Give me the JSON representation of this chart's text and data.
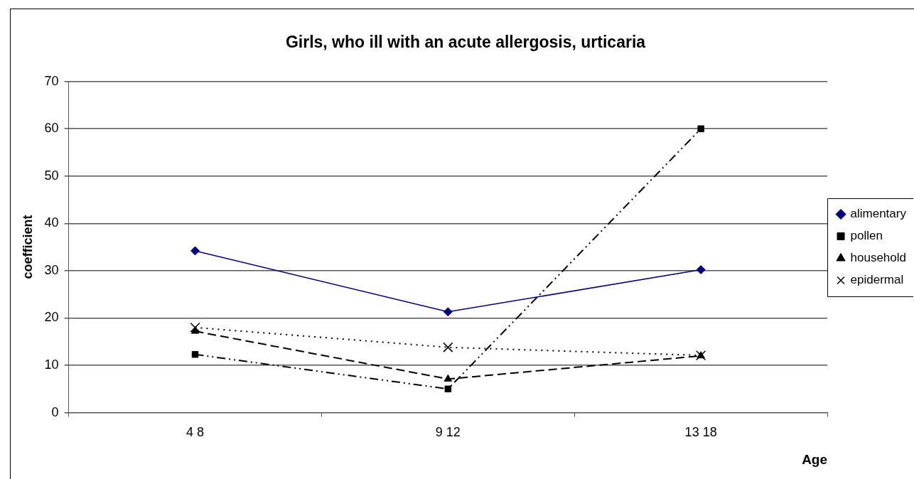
{
  "chart_data": {
    "type": "line",
    "title": "Girls, who ill with an acute allergosis, urticaria",
    "xlabel": "Age",
    "ylabel": "coefficient",
    "categories": [
      "4 8",
      "9 12",
      "13 18"
    ],
    "series": [
      {
        "name": "alimentary",
        "color": "#000080",
        "values": [
          34.2,
          21.3,
          30.2
        ],
        "marker": "diamond",
        "line_style": "solid"
      },
      {
        "name": "pollen",
        "color": "#000000",
        "values": [
          12.3,
          5.0,
          60
        ],
        "marker": "square",
        "line_style": "dashdot"
      },
      {
        "name": "household",
        "color": "#000000",
        "values": [
          17.2,
          7.1,
          12.0
        ],
        "marker": "triangle",
        "line_style": "dashed"
      },
      {
        "name": "epidermal",
        "color": "#000000",
        "values": [
          18.0,
          13.8,
          12.1
        ],
        "marker": "cross",
        "line_style": "dotted"
      }
    ],
    "ylim": [
      0,
      70
    ],
    "yticks": [
      0,
      10,
      20,
      30,
      40,
      50,
      60,
      70
    ],
    "grid": "y",
    "legend": "right"
  }
}
